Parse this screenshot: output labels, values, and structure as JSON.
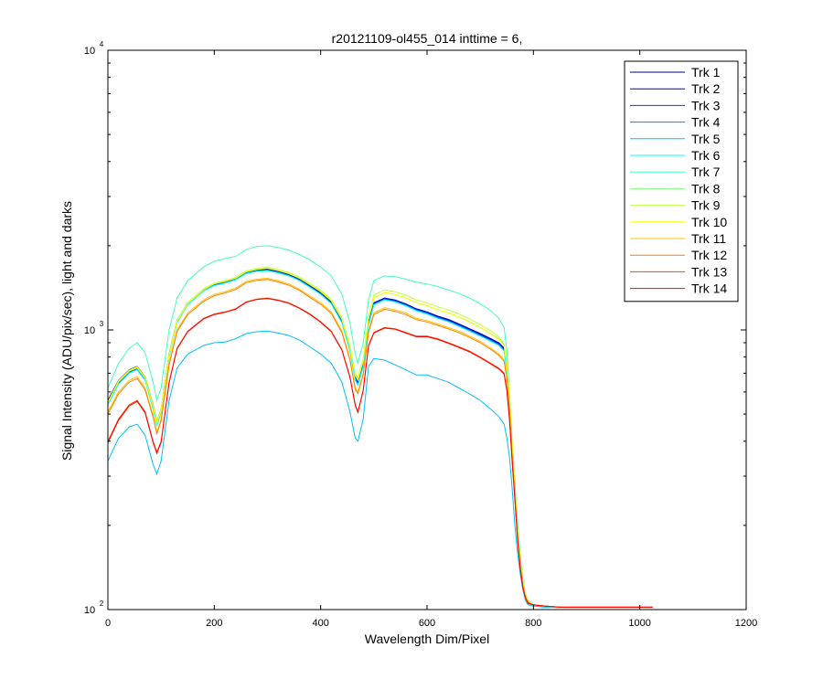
{
  "chart_data": {
    "type": "line",
    "title": "r20121109-ol455_014 inttime = 6,",
    "xlabel": "Wavelength Dim/Pixel",
    "ylabel": "Signal Intensity (ADU/pix/sec), light and darks",
    "yscale": "log",
    "xlim": [
      0,
      1200
    ],
    "ylim": [
      100,
      10000
    ],
    "x_ticks": [
      0,
      200,
      400,
      600,
      800,
      1000,
      1200
    ],
    "y_ticks": [
      {
        "value": 100,
        "base": "10",
        "exp": "2"
      },
      {
        "value": 1000,
        "base": "10",
        "exp": "3"
      },
      {
        "value": 10000,
        "base": "10",
        "exp": "4"
      }
    ],
    "grid": false,
    "legend_position": "top-right",
    "x": [
      0,
      20,
      40,
      55,
      70,
      85,
      92,
      100,
      115,
      130,
      150,
      180,
      200,
      220,
      240,
      260,
      280,
      300,
      320,
      340,
      360,
      380,
      400,
      420,
      440,
      455,
      465,
      470,
      480,
      490,
      500,
      520,
      540,
      560,
      580,
      600,
      620,
      640,
      660,
      680,
      700,
      720,
      735,
      745,
      750,
      755,
      760,
      765,
      770,
      775,
      780,
      785,
      790,
      800,
      820,
      850,
      900,
      950,
      1000,
      1024
    ],
    "series": [
      {
        "name": "Trk 1",
        "color": "#00007f",
        "values": [
          560,
          660,
          720,
          740,
          680,
          540,
          470,
          520,
          820,
          1080,
          1250,
          1400,
          1460,
          1490,
          1530,
          1610,
          1640,
          1650,
          1620,
          1580,
          1520,
          1440,
          1360,
          1260,
          1080,
          860,
          680,
          650,
          760,
          1060,
          1250,
          1300,
          1280,
          1240,
          1190,
          1160,
          1120,
          1090,
          1050,
          1010,
          970,
          930,
          900,
          860,
          740,
          560,
          380,
          270,
          190,
          150,
          125,
          112,
          107,
          104,
          103,
          102,
          102,
          102,
          102,
          102
        ]
      },
      {
        "name": "Trk 2",
        "color": "#0000cf",
        "values": [
          555,
          655,
          715,
          735,
          675,
          535,
          465,
          515,
          815,
          1075,
          1245,
          1395,
          1455,
          1485,
          1525,
          1605,
          1635,
          1645,
          1615,
          1575,
          1515,
          1435,
          1355,
          1255,
          1075,
          855,
          675,
          645,
          755,
          1055,
          1245,
          1295,
          1275,
          1235,
          1185,
          1155,
          1115,
          1085,
          1045,
          1005,
          965,
          925,
          895,
          855,
          735,
          555,
          375,
          265,
          187,
          148,
          124,
          111,
          106,
          104,
          103,
          102,
          102,
          102,
          102,
          102
        ]
      },
      {
        "name": "Trk 3",
        "color": "#0040ff",
        "values": [
          550,
          650,
          710,
          730,
          670,
          530,
          462,
          512,
          810,
          1070,
          1240,
          1390,
          1450,
          1480,
          1520,
          1600,
          1630,
          1640,
          1610,
          1570,
          1510,
          1430,
          1350,
          1250,
          1070,
          850,
          670,
          642,
          750,
          1050,
          1240,
          1290,
          1270,
          1230,
          1180,
          1150,
          1110,
          1080,
          1040,
          1000,
          960,
          920,
          890,
          850,
          730,
          550,
          372,
          262,
          185,
          147,
          123,
          111,
          106,
          104,
          103,
          102,
          102,
          102,
          102,
          102
        ]
      },
      {
        "name": "Trk 4",
        "color": "#0080ff",
        "values": [
          545,
          645,
          705,
          725,
          665,
          525,
          458,
          508,
          805,
          1065,
          1235,
          1385,
          1445,
          1475,
          1515,
          1595,
          1625,
          1635,
          1605,
          1565,
          1505,
          1425,
          1345,
          1245,
          1065,
          845,
          665,
          638,
          745,
          1045,
          1235,
          1285,
          1265,
          1225,
          1175,
          1145,
          1105,
          1075,
          1035,
          995,
          955,
          915,
          885,
          845,
          725,
          545,
          370,
          260,
          183,
          146,
          122,
          110,
          106,
          104,
          103,
          102,
          102,
          102,
          102,
          102
        ]
      },
      {
        "name": "Trk 5",
        "color": "#00bfff",
        "values": [
          340,
          410,
          450,
          460,
          420,
          330,
          305,
          340,
          560,
          730,
          820,
          880,
          900,
          905,
          930,
          970,
          985,
          990,
          975,
          955,
          920,
          870,
          820,
          760,
          650,
          510,
          410,
          400,
          480,
          740,
          790,
          780,
          750,
          720,
          690,
          690,
          670,
          650,
          620,
          590,
          560,
          520,
          490,
          460,
          410,
          350,
          270,
          200,
          160,
          135,
          118,
          108,
          104,
          103,
          102,
          102,
          102,
          102,
          102,
          102
        ]
      },
      {
        "name": "Trk 6",
        "color": "#00ffff",
        "values": [
          540,
          640,
          700,
          720,
          660,
          520,
          455,
          505,
          800,
          1060,
          1230,
          1380,
          1440,
          1470,
          1510,
          1590,
          1620,
          1630,
          1600,
          1560,
          1500,
          1420,
          1340,
          1240,
          1060,
          840,
          660,
          635,
          740,
          1040,
          1230,
          1280,
          1260,
          1220,
          1170,
          1140,
          1100,
          1070,
          1030,
          990,
          950,
          910,
          880,
          840,
          720,
          540,
          368,
          258,
          182,
          145,
          122,
          110,
          105,
          104,
          103,
          102,
          102,
          102,
          102,
          102
        ]
      },
      {
        "name": "Trk 7",
        "color": "#40ffbf",
        "values": [
          620,
          760,
          860,
          900,
          830,
          650,
          560,
          620,
          1000,
          1300,
          1500,
          1680,
          1760,
          1800,
          1830,
          1940,
          1990,
          2000,
          1970,
          1930,
          1860,
          1780,
          1680,
          1560,
          1340,
          1060,
          820,
          760,
          900,
          1280,
          1500,
          1560,
          1550,
          1520,
          1480,
          1460,
          1430,
          1390,
          1350,
          1300,
          1240,
          1170,
          1100,
          1020,
          840,
          600,
          400,
          290,
          210,
          160,
          130,
          114,
          108,
          104,
          103,
          102,
          102,
          102,
          102,
          102
        ]
      },
      {
        "name": "Trk 8",
        "color": "#80ff80",
        "values": [
          550,
          655,
          715,
          735,
          675,
          535,
          467,
          517,
          815,
          1075,
          1245,
          1400,
          1465,
          1495,
          1535,
          1620,
          1650,
          1665,
          1635,
          1595,
          1535,
          1455,
          1375,
          1275,
          1095,
          870,
          690,
          665,
          780,
          1100,
          1300,
          1360,
          1340,
          1300,
          1250,
          1220,
          1180,
          1150,
          1110,
          1070,
          1020,
          970,
          930,
          880,
          760,
          575,
          390,
          275,
          195,
          152,
          126,
          112,
          107,
          104,
          103,
          102,
          102,
          102,
          102,
          102
        ]
      },
      {
        "name": "Trk 9",
        "color": "#bfff40",
        "values": [
          552,
          658,
          718,
          738,
          678,
          538,
          469,
          519,
          818,
          1078,
          1250,
          1405,
          1470,
          1500,
          1540,
          1625,
          1660,
          1675,
          1645,
          1605,
          1545,
          1465,
          1385,
          1285,
          1105,
          880,
          700,
          675,
          790,
          1120,
          1330,
          1390,
          1370,
          1330,
          1280,
          1250,
          1210,
          1180,
          1140,
          1095,
          1045,
          990,
          945,
          890,
          770,
          580,
          395,
          278,
          197,
          153,
          127,
          113,
          107,
          104,
          103,
          102,
          102,
          102,
          102,
          102
        ]
      },
      {
        "name": "Trk 10",
        "color": "#ffff00",
        "values": [
          548,
          652,
          712,
          732,
          672,
          532,
          464,
          514,
          812,
          1072,
          1242,
          1395,
          1460,
          1490,
          1530,
          1612,
          1645,
          1660,
          1630,
          1590,
          1530,
          1450,
          1370,
          1270,
          1090,
          866,
          686,
          660,
          775,
          1095,
          1300,
          1360,
          1340,
          1300,
          1250,
          1220,
          1180,
          1150,
          1110,
          1068,
          1020,
          968,
          925,
          872,
          752,
          570,
          388,
          273,
          194,
          151,
          126,
          112,
          107,
          104,
          103,
          102,
          102,
          102,
          102,
          102
        ]
      },
      {
        "name": "Trk 11",
        "color": "#ffbf00",
        "values": [
          510,
          600,
          660,
          680,
          620,
          495,
          430,
          480,
          760,
          1000,
          1150,
          1280,
          1340,
          1370,
          1410,
          1490,
          1520,
          1530,
          1500,
          1460,
          1400,
          1320,
          1250,
          1160,
          990,
          790,
          620,
          600,
          700,
          990,
          1150,
          1200,
          1180,
          1150,
          1100,
          1080,
          1050,
          1020,
          990,
          950,
          910,
          860,
          820,
          780,
          680,
          520,
          360,
          260,
          185,
          145,
          123,
          111,
          106,
          104,
          103,
          102,
          102,
          102,
          102,
          102
        ]
      },
      {
        "name": "Trk 12",
        "color": "#ff8000",
        "values": [
          500,
          590,
          650,
          670,
          610,
          488,
          425,
          472,
          748,
          985,
          1135,
          1265,
          1325,
          1355,
          1395,
          1475,
          1505,
          1515,
          1485,
          1445,
          1385,
          1305,
          1235,
          1145,
          978,
          780,
          612,
          592,
          692,
          978,
          1135,
          1185,
          1165,
          1135,
          1088,
          1068,
          1038,
          1008,
          978,
          940,
          900,
          852,
          812,
          772,
          672,
          514,
          356,
          257,
          183,
          144,
          122,
          111,
          106,
          104,
          103,
          102,
          102,
          102,
          102,
          102
        ]
      },
      {
        "name": "Trk 13",
        "color": "#ff4000",
        "values": [
          400,
          480,
          540,
          560,
          510,
          400,
          365,
          400,
          650,
          860,
          990,
          1100,
          1140,
          1160,
          1190,
          1260,
          1290,
          1300,
          1280,
          1250,
          1200,
          1140,
          1070,
          990,
          850,
          680,
          540,
          510,
          610,
          880,
          980,
          1020,
          1010,
          980,
          950,
          950,
          930,
          900,
          870,
          840,
          800,
          760,
          730,
          700,
          610,
          480,
          340,
          250,
          180,
          142,
          121,
          110,
          106,
          104,
          103,
          102,
          102,
          102,
          102,
          102
        ]
      },
      {
        "name": "Trk 14",
        "color": "#ff0000",
        "values": [
          395,
          475,
          535,
          555,
          505,
          396,
          362,
          396,
          645,
          855,
          985,
          1095,
          1135,
          1155,
          1185,
          1255,
          1285,
          1295,
          1275,
          1245,
          1195,
          1135,
          1065,
          985,
          846,
          676,
          536,
          507,
          606,
          875,
          975,
          1015,
          1005,
          975,
          945,
          945,
          925,
          895,
          865,
          835,
          795,
          755,
          725,
          695,
          605,
          476,
          337,
          248,
          179,
          141,
          120,
          110,
          105,
          104,
          103,
          102,
          102,
          102,
          102,
          102
        ]
      }
    ]
  }
}
